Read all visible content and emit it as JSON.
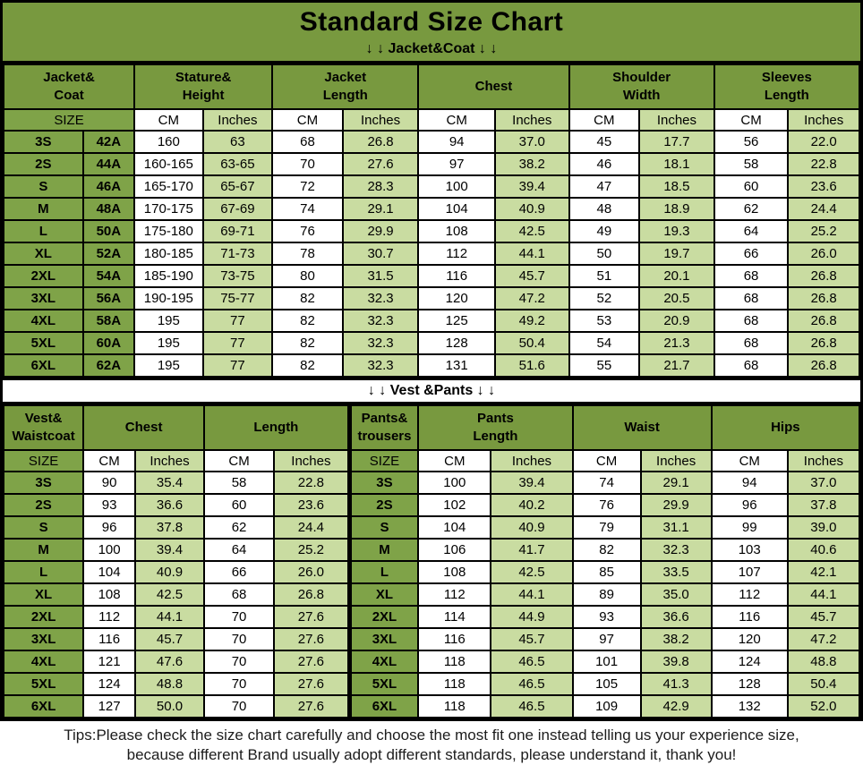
{
  "title": "Standard Size Chart",
  "colors": {
    "header_green": "#78993f",
    "cell_green": "#7fa348",
    "light_green": "#c9dca1",
    "border_black": "#000000"
  },
  "chart_data": [
    {
      "type": "table",
      "section_label": "↓ ↓  Jacket&Coat ↓ ↓",
      "headers": [
        "Jacket&\nCoat",
        "Stature&\nHeight",
        "Jacket\nLength",
        "Chest",
        "Shoulder\nWidth",
        "Sleeves\nLength"
      ],
      "subheaders": [
        "SIZE",
        "CM",
        "Inches",
        "CM",
        "Inches",
        "CM",
        "Inches",
        "CM",
        "Inches",
        "CM",
        "Inches"
      ],
      "rows": [
        [
          "3S",
          "42A",
          "160",
          "63",
          "68",
          "26.8",
          "94",
          "37.0",
          "45",
          "17.7",
          "56",
          "22.0"
        ],
        [
          "2S",
          "44A",
          "160-165",
          "63-65",
          "70",
          "27.6",
          "97",
          "38.2",
          "46",
          "18.1",
          "58",
          "22.8"
        ],
        [
          "S",
          "46A",
          "165-170",
          "65-67",
          "72",
          "28.3",
          "100",
          "39.4",
          "47",
          "18.5",
          "60",
          "23.6"
        ],
        [
          "M",
          "48A",
          "170-175",
          "67-69",
          "74",
          "29.1",
          "104",
          "40.9",
          "48",
          "18.9",
          "62",
          "24.4"
        ],
        [
          "L",
          "50A",
          "175-180",
          "69-71",
          "76",
          "29.9",
          "108",
          "42.5",
          "49",
          "19.3",
          "64",
          "25.2"
        ],
        [
          "XL",
          "52A",
          "180-185",
          "71-73",
          "78",
          "30.7",
          "112",
          "44.1",
          "50",
          "19.7",
          "66",
          "26.0"
        ],
        [
          "2XL",
          "54A",
          "185-190",
          "73-75",
          "80",
          "31.5",
          "116",
          "45.7",
          "51",
          "20.1",
          "68",
          "26.8"
        ],
        [
          "3XL",
          "56A",
          "190-195",
          "75-77",
          "82",
          "32.3",
          "120",
          "47.2",
          "52",
          "20.5",
          "68",
          "26.8"
        ],
        [
          "4XL",
          "58A",
          "195",
          "77",
          "82",
          "32.3",
          "125",
          "49.2",
          "53",
          "20.9",
          "68",
          "26.8"
        ],
        [
          "5XL",
          "60A",
          "195",
          "77",
          "82",
          "32.3",
          "128",
          "50.4",
          "54",
          "21.3",
          "68",
          "26.8"
        ],
        [
          "6XL",
          "62A",
          "195",
          "77",
          "82",
          "32.3",
          "131",
          "51.6",
          "55",
          "21.7",
          "68",
          "26.8"
        ]
      ]
    },
    {
      "type": "table",
      "section_label": "↓ ↓  Vest &Pants ↓ ↓",
      "headers": [
        "Vest&\nWaistcoat",
        "Chest",
        "Length",
        "Pants&\ntrousers",
        "Pants\nLength",
        "Waist",
        "Hips"
      ],
      "subheaders": [
        "SIZE",
        "CM",
        "Inches",
        "CM",
        "Inches",
        "SIZE",
        "CM",
        "Inches",
        "CM",
        "Inches",
        "CM",
        "Inches"
      ],
      "rows": [
        [
          "3S",
          "90",
          "35.4",
          "58",
          "22.8",
          "3S",
          "100",
          "39.4",
          "74",
          "29.1",
          "94",
          "37.0"
        ],
        [
          "2S",
          "93",
          "36.6",
          "60",
          "23.6",
          "2S",
          "102",
          "40.2",
          "76",
          "29.9",
          "96",
          "37.8"
        ],
        [
          "S",
          "96",
          "37.8",
          "62",
          "24.4",
          "S",
          "104",
          "40.9",
          "79",
          "31.1",
          "99",
          "39.0"
        ],
        [
          "M",
          "100",
          "39.4",
          "64",
          "25.2",
          "M",
          "106",
          "41.7",
          "82",
          "32.3",
          "103",
          "40.6"
        ],
        [
          "L",
          "104",
          "40.9",
          "66",
          "26.0",
          "L",
          "108",
          "42.5",
          "85",
          "33.5",
          "107",
          "42.1"
        ],
        [
          "XL",
          "108",
          "42.5",
          "68",
          "26.8",
          "XL",
          "112",
          "44.1",
          "89",
          "35.0",
          "112",
          "44.1"
        ],
        [
          "2XL",
          "112",
          "44.1",
          "70",
          "27.6",
          "2XL",
          "114",
          "44.9",
          "93",
          "36.6",
          "116",
          "45.7"
        ],
        [
          "3XL",
          "116",
          "45.7",
          "70",
          "27.6",
          "3XL",
          "116",
          "45.7",
          "97",
          "38.2",
          "120",
          "47.2"
        ],
        [
          "4XL",
          "121",
          "47.6",
          "70",
          "27.6",
          "4XL",
          "118",
          "46.5",
          "101",
          "39.8",
          "124",
          "48.8"
        ],
        [
          "5XL",
          "124",
          "48.8",
          "70",
          "27.6",
          "5XL",
          "118",
          "46.5",
          "105",
          "41.3",
          "128",
          "50.4"
        ],
        [
          "6XL",
          "127",
          "50.0",
          "70",
          "27.6",
          "6XL",
          "118",
          "46.5",
          "109",
          "42.9",
          "132",
          "52.0"
        ]
      ]
    }
  ],
  "tips": {
    "line1": "Tips:Please check the size chart carefully and choose the most fit one instead telling us your experience size,",
    "line2": "because different Brand usually adopt different standards, please understand it, thank you!"
  }
}
